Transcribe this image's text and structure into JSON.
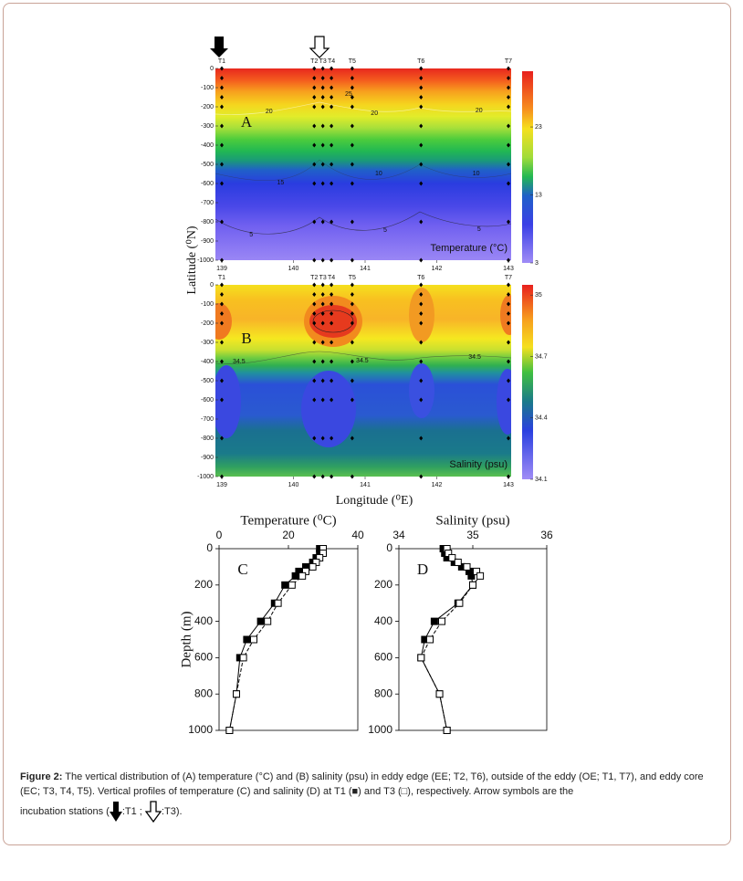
{
  "figure": {
    "map_y_label": "Latitude (⁰N)",
    "map_x_label": "Longitude (⁰E)"
  },
  "chart_data": [
    {
      "type": "contour",
      "label": "A",
      "quantity_label": "Temperature (°C)",
      "stations": [
        {
          "label": "T1",
          "x": 139
        },
        {
          "label": "T2",
          "x": 140.29
        },
        {
          "label": "T3",
          "x": 140.41
        },
        {
          "label": "T4",
          "x": 140.53
        },
        {
          "label": "T5",
          "x": 140.82
        },
        {
          "label": "T6",
          "x": 141.78
        },
        {
          "label": "T7",
          "x": 143
        }
      ],
      "sample_depths": [
        0,
        -50,
        -100,
        -150,
        -200,
        -300,
        -400,
        -500,
        -600,
        -800,
        -1000
      ],
      "xlim": [
        139,
        143
      ],
      "xticks": [
        139,
        140,
        141,
        142,
        143
      ],
      "ylim": [
        0,
        -1000
      ],
      "yticks": [
        0,
        -100,
        -200,
        -300,
        -400,
        -500,
        -600,
        -700,
        -800,
        -900,
        -1000
      ],
      "clim": [
        3,
        31.2
      ],
      "cticks": [
        23,
        13,
        3
      ],
      "contour_labels": [
        {
          "label": "25",
          "x": 140.77,
          "y": -133
        },
        {
          "label": "20",
          "x": 139.66,
          "y": -224
        },
        {
          "label": "20",
          "x": 141.13,
          "y": -233
        },
        {
          "label": "20",
          "x": 142.59,
          "y": -219
        },
        {
          "label": "15",
          "x": 139.82,
          "y": -595
        },
        {
          "label": "10",
          "x": 141.19,
          "y": -548
        },
        {
          "label": "10",
          "x": 142.55,
          "y": -548
        },
        {
          "label": "5",
          "x": 139.41,
          "y": -867
        },
        {
          "label": "5",
          "x": 141.28,
          "y": -843
        },
        {
          "label": "5",
          "x": 142.59,
          "y": -838
        }
      ]
    },
    {
      "type": "contour",
      "label": "B",
      "quantity_label": "Salinity (psu)",
      "stations": [
        {
          "label": "T1",
          "x": 139
        },
        {
          "label": "T2",
          "x": 140.29
        },
        {
          "label": "T3",
          "x": 140.41
        },
        {
          "label": "T4",
          "x": 140.53
        },
        {
          "label": "T5",
          "x": 140.82
        },
        {
          "label": "T6",
          "x": 141.78
        },
        {
          "label": "T7",
          "x": 143
        }
      ],
      "sample_depths": [
        0,
        -50,
        -100,
        -150,
        -200,
        -300,
        -400,
        -500,
        -600,
        -800,
        -1000
      ],
      "xlim": [
        139,
        143
      ],
      "xticks": [
        139,
        140,
        141,
        142,
        143
      ],
      "ylim": [
        0,
        -1000
      ],
      "yticks": [
        0,
        -100,
        -200,
        -300,
        -400,
        -500,
        -600,
        -700,
        -800,
        -900,
        -1000
      ],
      "clim": [
        34.1,
        35.05
      ],
      "cticks": [
        35,
        34.7,
        34.4,
        34.1
      ],
      "contour_labels": [
        {
          "label": "34.5",
          "x": 139.24,
          "y": -400
        },
        {
          "label": "34.5",
          "x": 140.96,
          "y": -395
        },
        {
          "label": "34.5",
          "x": 142.53,
          "y": -376
        }
      ]
    },
    {
      "type": "profile",
      "label": "C",
      "title": "Temperature (⁰C)",
      "y_label": "Depth (m)",
      "xlim": [
        0,
        40
      ],
      "xticks": [
        0,
        20,
        40
      ],
      "ylim": [
        0,
        1000
      ],
      "yticks": [
        0,
        200,
        400,
        600,
        800,
        1000
      ],
      "depths": [
        0,
        25,
        50,
        75,
        100,
        125,
        150,
        200,
        300,
        400,
        500,
        600,
        800,
        1000
      ],
      "series": [
        {
          "marker": "filled",
          "dashed": false,
          "color": "#000000",
          "values": [
            29,
            29,
            28,
            27,
            25,
            23,
            22,
            19,
            16,
            12,
            8,
            6,
            5,
            3
          ]
        },
        {
          "marker": "open",
          "dashed": true,
          "color": "#000000",
          "values": [
            30,
            30,
            29,
            28,
            27,
            25,
            24,
            21,
            17,
            14,
            10,
            7,
            5,
            3
          ]
        }
      ]
    },
    {
      "type": "profile",
      "label": "D",
      "title": "Salinity  (psu)",
      "xlim": [
        34,
        36
      ],
      "xticks": [
        34,
        35,
        36
      ],
      "ylim": [
        0,
        1000
      ],
      "yticks": [
        0,
        200,
        400,
        600,
        800,
        1000
      ],
      "depths": [
        0,
        25,
        50,
        75,
        100,
        125,
        150,
        200,
        300,
        400,
        500,
        600,
        800,
        1000
      ],
      "series": [
        {
          "marker": "filled",
          "dashed": false,
          "color": "#000000",
          "values": [
            34.6,
            34.62,
            34.65,
            34.75,
            34.85,
            34.95,
            34.98,
            35.0,
            34.8,
            34.48,
            34.35,
            34.3,
            34.55,
            34.65
          ]
        },
        {
          "marker": "open",
          "dashed": true,
          "color": "#000000",
          "values": [
            34.65,
            34.67,
            34.72,
            34.8,
            34.92,
            35.05,
            35.1,
            35.0,
            34.82,
            34.58,
            34.42,
            34.3,
            34.55,
            34.65
          ]
        }
      ]
    }
  ],
  "caption": {
    "label": "Figure 2:",
    "text_1": " The vertical distribution of (A) temperature (°C) and (B) salinity (psu) in eddy edge (EE; T2, T6), outside of the eddy (OE; T1, T7), and eddy core (EC; T3, T4, T5). Vertical profiles of temperature (C) and salinity (D) at T1 (■) and T3 (□), respectively. Arrow symbols are the",
    "text_2": "incubation stations (",
    "text_3": ":T1 ;",
    "text_4": ":T3)."
  }
}
